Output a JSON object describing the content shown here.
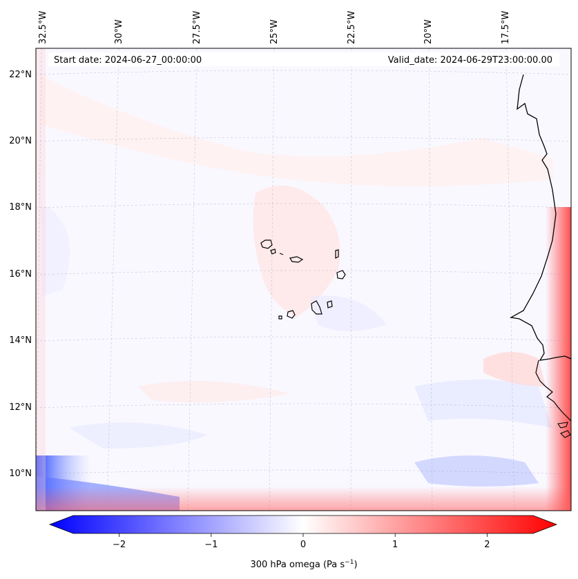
{
  "map": {
    "start_date_label": "Start date: 2024-06-27_00:00:00",
    "valid_date_label": "Valid_date: 2024-06-29T23:00:00.00",
    "lon_labels": [
      "32.5°W",
      "30°W",
      "27.5°W",
      "25°W",
      "22.5°W",
      "20°W",
      "17.5°W"
    ],
    "lat_labels": [
      "22°N",
      "20°N",
      "18°N",
      "16°N",
      "14°N",
      "12°N",
      "10°N"
    ],
    "field": "300 hPa omega",
    "colors": {
      "negative": "#0000ff",
      "neutral": "#ffffff",
      "positive": "#ff0000",
      "coastline": "#000000"
    }
  },
  "colorbar": {
    "label_prefix": "300 hPa omega (Pa s",
    "label_exp": "−1",
    "label_suffix": ")",
    "min": -2.75,
    "max": 2.75,
    "ticks": [
      {
        "value": -2,
        "label": "−2"
      },
      {
        "value": -1,
        "label": "−1"
      },
      {
        "value": 0,
        "label": "0"
      },
      {
        "value": 1,
        "label": "1"
      },
      {
        "value": 2,
        "label": "2"
      }
    ]
  }
}
